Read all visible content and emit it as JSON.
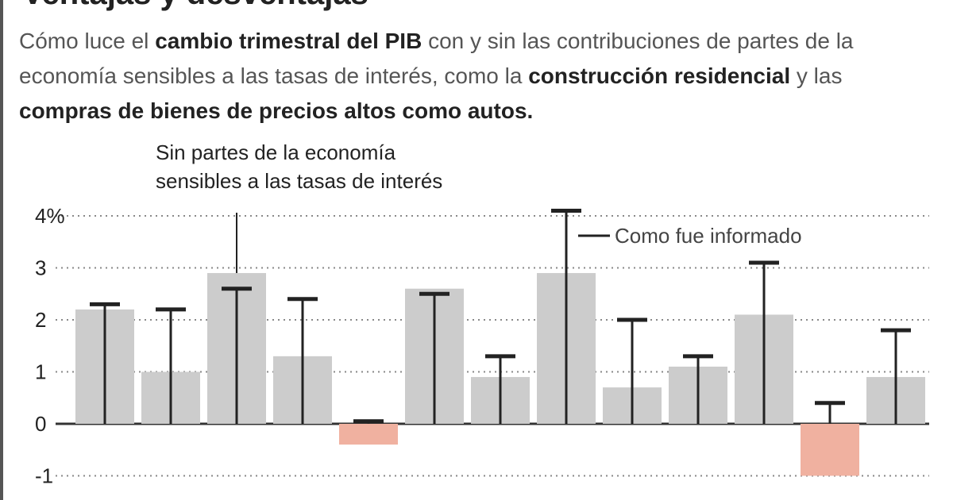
{
  "header": {
    "cut_title": "Ventajas y desventajas"
  },
  "subtitle": {
    "t1": "Cómo luce el ",
    "b1": "cambio trimestral del PIB",
    "t2": " con y sin las contribuciones de partes de la economía sensibles a las tasas de interés, como la ",
    "b2": "construcción residencial",
    "t3": " y las ",
    "b3": "compras de bienes de precios altos como autos."
  },
  "annotations": {
    "bar_label_line1": "Sin partes de la economía",
    "bar_label_line2": "sensibles a las tasas de interés",
    "reported_label": "Como fue informado"
  },
  "colors": {
    "bar_positive": "#cccccc",
    "bar_negative": "#f0b1a0",
    "reported_line": "#222222",
    "grid": "#888888",
    "zero_line": "#333333"
  },
  "chart_data": {
    "type": "bar",
    "title": "",
    "xlabel": "",
    "ylabel": "",
    "ylim": [
      -1,
      4
    ],
    "yticks": [
      -1,
      0,
      1,
      2,
      3,
      4
    ],
    "ytick_labels": [
      "-1",
      "0",
      "1",
      "2",
      "3",
      "4%"
    ],
    "grid": true,
    "series": [
      {
        "name": "Sin partes de la economía sensibles a las tasas de interés",
        "values": [
          2.2,
          1.0,
          2.9,
          1.3,
          -0.4,
          2.6,
          0.9,
          2.9,
          0.7,
          1.1,
          2.1,
          -1.0,
          0.9
        ]
      },
      {
        "name": "Como fue informado",
        "values": [
          2.3,
          2.2,
          2.6,
          2.4,
          0.05,
          2.5,
          1.3,
          4.1,
          2.0,
          1.3,
          3.1,
          0.4,
          1.8
        ]
      }
    ]
  }
}
